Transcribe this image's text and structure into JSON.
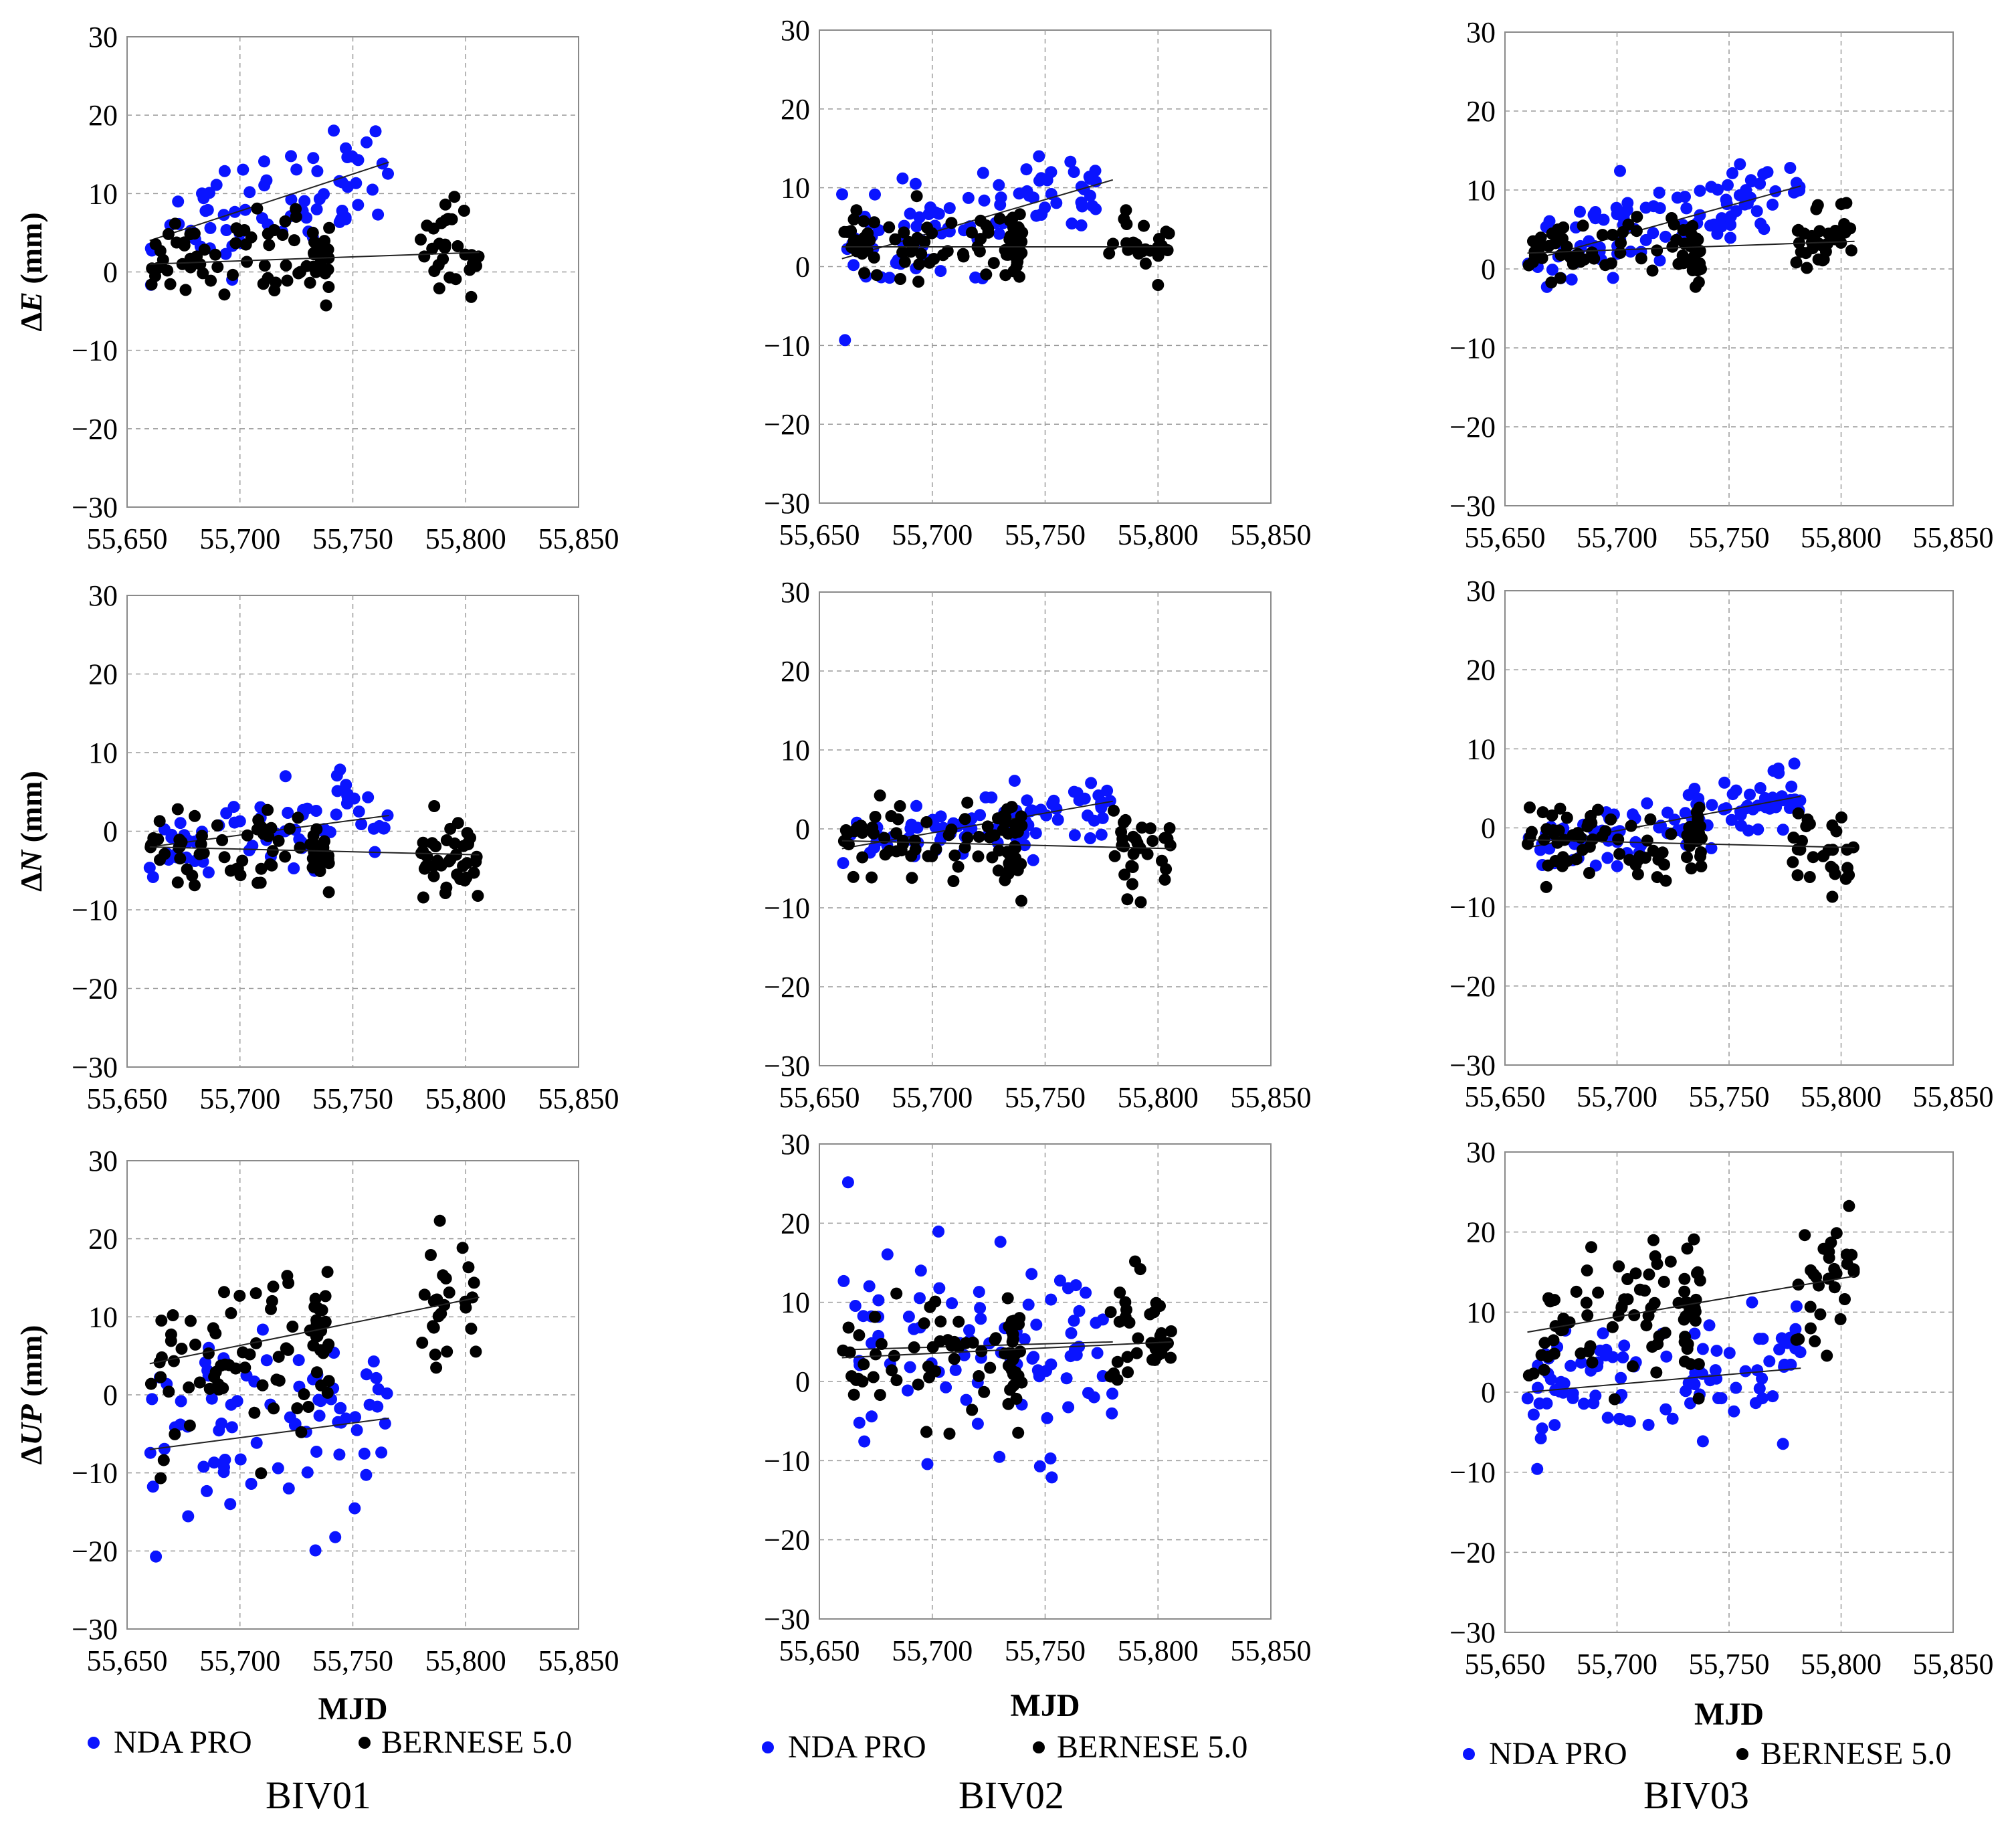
{
  "figure": {
    "x_ticks": [
      "55,650",
      "55,700",
      "55,750",
      "55,800",
      "55,850"
    ],
    "y_ticks": [
      "30",
      "20",
      "10",
      "0",
      "−10",
      "−20",
      "−30"
    ],
    "xlabel": "MJD",
    "row_ylabels": [
      {
        "prefix": "Δ",
        "symbol": "E",
        "unit": " (mm)"
      },
      {
        "prefix": "Δ",
        "symbol": "N",
        "unit": " (mm)"
      },
      {
        "prefix": "Δ",
        "symbol": "UP",
        "unit": " (mm)"
      }
    ],
    "legend": {
      "nda": "NDA PRO",
      "bernese": "BERNESE 5.0"
    },
    "captions": [
      "BIV01",
      "BIV02",
      "BIV03"
    ],
    "colors": {
      "nda": "#0a14ff",
      "bernese": "#000000",
      "grid": "#9a9a9a"
    }
  },
  "chart_data": [
    {
      "type": "scatter",
      "station": "BIV01",
      "component": "E",
      "ylim": [
        -30,
        30
      ],
      "xlim": [
        55650,
        55850
      ],
      "series": [
        {
          "name": "NDA PRO",
          "x_range": [
            55660,
            55766
          ],
          "trend": [
            [
              55660,
              4.0
            ],
            [
              55766,
              14.0
            ]
          ],
          "spread": 3.5,
          "n": 70
        },
        {
          "name": "BERNESE 5.0",
          "x_range": [
            55660,
            55806
          ],
          "gap": [
            55740,
            55780
          ],
          "trend": [
            [
              55660,
              1.0
            ],
            [
              55806,
              2.5
            ]
          ],
          "spread": 2.5,
          "n": 110
        }
      ]
    },
    {
      "type": "scatter",
      "station": "BIV02",
      "component": "E",
      "ylim": [
        -30,
        30
      ],
      "xlim": [
        55650,
        55850
      ],
      "series": [
        {
          "name": "NDA PRO",
          "x_range": [
            55660,
            55780
          ],
          "trend": [
            [
              55660,
              1.0
            ],
            [
              55780,
              11.0
            ]
          ],
          "spread": 3.0,
          "n": 90
        },
        {
          "name": "BERNESE 5.0",
          "x_range": [
            55660,
            55806
          ],
          "gap": [
            55740,
            55778
          ],
          "trend": [
            [
              55660,
              2.5
            ],
            [
              55806,
              2.5
            ]
          ],
          "spread": 2.0,
          "n": 110
        }
      ]
    },
    {
      "type": "scatter",
      "station": "BIV03",
      "component": "E",
      "ylim": [
        -30,
        30
      ],
      "xlim": [
        55650,
        55850
      ],
      "series": [
        {
          "name": "NDA PRO",
          "x_range": [
            55660,
            55782
          ],
          "trend": [
            [
              55660,
              1.0
            ],
            [
              55782,
              10.5
            ]
          ],
          "spread": 2.5,
          "n": 100
        },
        {
          "name": "BERNESE 5.0",
          "x_range": [
            55660,
            55806
          ],
          "gap": [
            55738,
            55780
          ],
          "trend": [
            [
              55660,
              2.0
            ],
            [
              55806,
              3.5
            ]
          ],
          "spread": 2.0,
          "n": 110
        }
      ]
    },
    {
      "type": "scatter",
      "station": "BIV01",
      "component": "N",
      "ylim": [
        -30,
        30
      ],
      "xlim": [
        55650,
        55850
      ],
      "series": [
        {
          "name": "NDA PRO",
          "x_range": [
            55660,
            55766
          ],
          "trend": [
            [
              55660,
              -2.0
            ],
            [
              55766,
              2.0
            ]
          ],
          "spread": 2.5,
          "n": 70
        },
        {
          "name": "BERNESE 5.0",
          "x_range": [
            55660,
            55806
          ],
          "gap": [
            55740,
            55780
          ],
          "trend": [
            [
              55660,
              -2.0
            ],
            [
              55806,
              -3.0
            ]
          ],
          "spread": 2.5,
          "n": 110
        }
      ]
    },
    {
      "type": "scatter",
      "station": "BIV02",
      "component": "N",
      "ylim": [
        -30,
        30
      ],
      "xlim": [
        55650,
        55850
      ],
      "series": [
        {
          "name": "NDA PRO",
          "x_range": [
            55660,
            55780
          ],
          "trend": [
            [
              55660,
              -2.5
            ],
            [
              55780,
              3.5
            ]
          ],
          "spread": 2.0,
          "n": 90
        },
        {
          "name": "BERNESE 5.0",
          "x_range": [
            55660,
            55806
          ],
          "gap": [
            55740,
            55778
          ],
          "trend": [
            [
              55660,
              -1.5
            ],
            [
              55806,
              -2.5
            ]
          ],
          "spread": 2.5,
          "n": 110
        }
      ]
    },
    {
      "type": "scatter",
      "station": "BIV03",
      "component": "N",
      "ylim": [
        -30,
        30
      ],
      "xlim": [
        55650,
        55850
      ],
      "series": [
        {
          "name": "NDA PRO",
          "x_range": [
            55660,
            55782
          ],
          "trend": [
            [
              55660,
              -2.5
            ],
            [
              55782,
              4.0
            ]
          ],
          "spread": 2.0,
          "n": 100
        },
        {
          "name": "BERNESE 5.0",
          "x_range": [
            55660,
            55806
          ],
          "gap": [
            55738,
            55778
          ],
          "trend": [
            [
              55660,
              -1.5
            ],
            [
              55806,
              -2.5
            ]
          ],
          "spread": 2.5,
          "n": 110
        }
      ]
    },
    {
      "type": "scatter",
      "station": "BIV01",
      "component": "UP",
      "ylim": [
        -30,
        30
      ],
      "xlim": [
        55650,
        55850
      ],
      "series": [
        {
          "name": "NDA PRO",
          "x_range": [
            55660,
            55766
          ],
          "trend": [
            [
              55660,
              -7.0
            ],
            [
              55766,
              -3.0
            ]
          ],
          "spread": 6.0,
          "n": 80
        },
        {
          "name": "BERNESE 5.0",
          "x_range": [
            55660,
            55806
          ],
          "gap": [
            55740,
            55780
          ],
          "trend": [
            [
              55660,
              4.0
            ],
            [
              55806,
              12.5
            ]
          ],
          "spread": 4.5,
          "n": 110
        }
      ]
    },
    {
      "type": "scatter",
      "station": "BIV02",
      "component": "UP",
      "ylim": [
        -30,
        30
      ],
      "xlim": [
        55650,
        55850
      ],
      "series": [
        {
          "name": "NDA PRO",
          "x_range": [
            55660,
            55780
          ],
          "trend": [
            [
              55660,
              4.0
            ],
            [
              55780,
              5.0
            ]
          ],
          "spread": 6.5,
          "n": 90
        },
        {
          "name": "BERNESE 5.0",
          "x_range": [
            55660,
            55806
          ],
          "gap": [
            55740,
            55778
          ],
          "trend": [
            [
              55660,
              3.0
            ],
            [
              55806,
              5.0
            ]
          ],
          "spread": 4.0,
          "n": 110
        }
      ]
    },
    {
      "type": "scatter",
      "station": "BIV03",
      "component": "UP",
      "ylim": [
        -30,
        30
      ],
      "xlim": [
        55650,
        55850
      ],
      "series": [
        {
          "name": "NDA PRO",
          "x_range": [
            55660,
            55782
          ],
          "trend": [
            [
              55660,
              0.0
            ],
            [
              55782,
              3.0
            ]
          ],
          "spread": 4.0,
          "n": 100
        },
        {
          "name": "BERNESE 5.0",
          "x_range": [
            55660,
            55806
          ],
          "gap": [
            55738,
            55780
          ],
          "trend": [
            [
              55660,
              7.5
            ],
            [
              55806,
              14.5
            ]
          ],
          "spread": 4.5,
          "n": 110
        }
      ]
    }
  ]
}
